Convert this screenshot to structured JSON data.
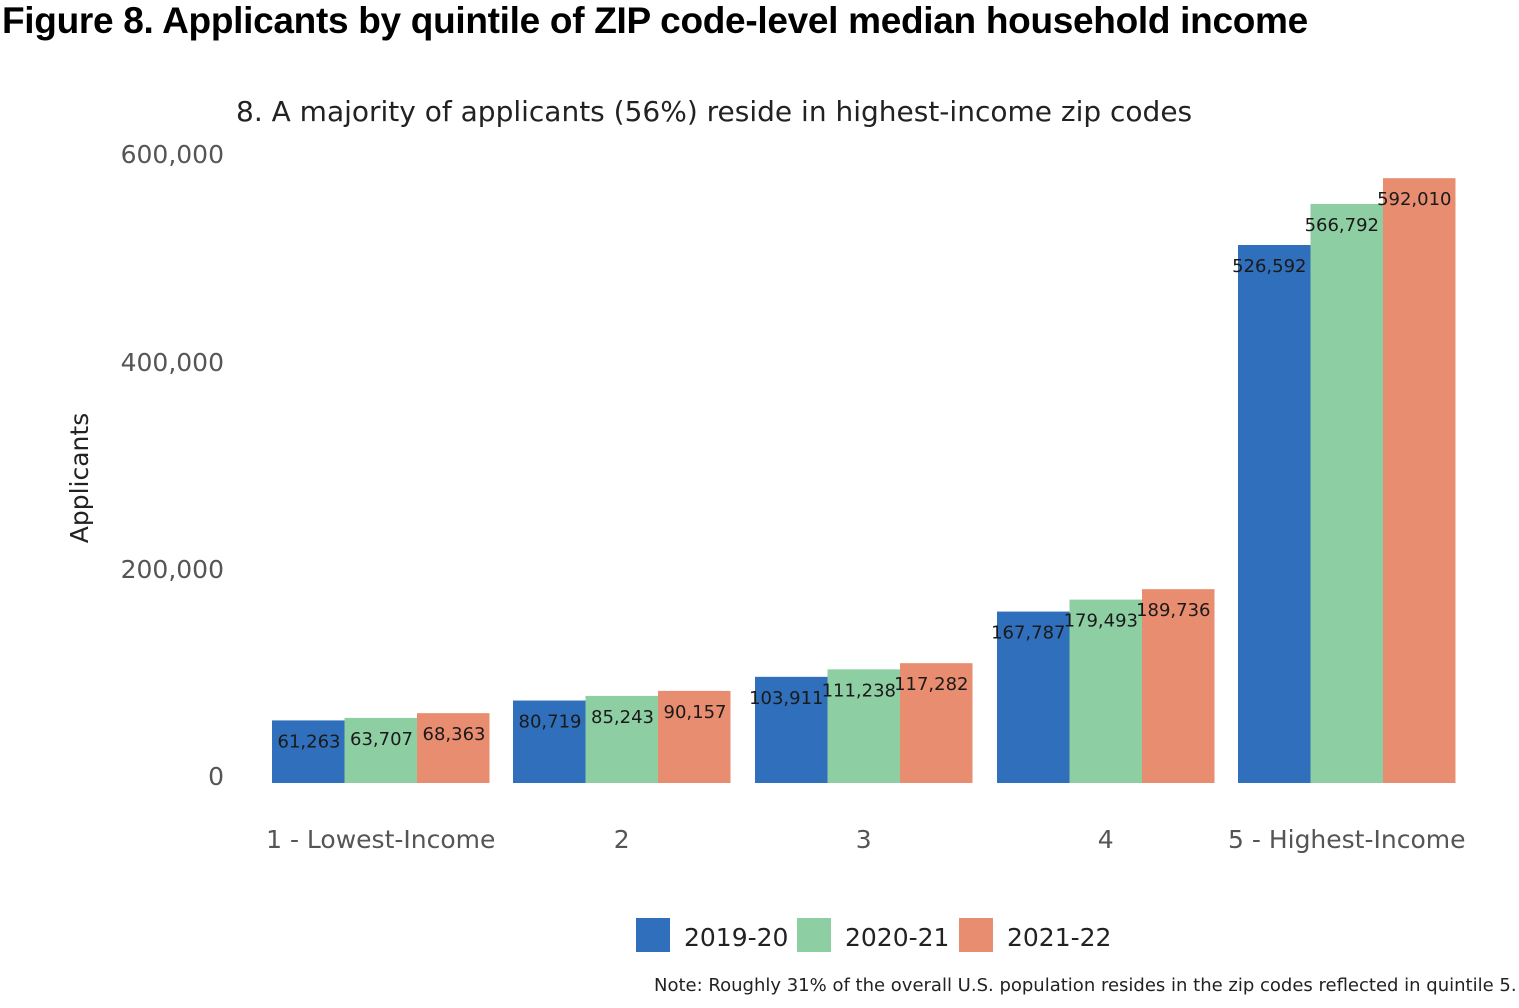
{
  "figure_title": "Figure 8. Applicants by quintile of ZIP code-level median household income",
  "note": "Note: Roughly 31% of the overall U.S. population resides in the zip codes reflected in quintile 5.",
  "chart_data": {
    "type": "bar",
    "title": "8. A majority of applicants (56%) reside in highest-income zip codes",
    "xlabel": "",
    "ylabel": "Applicants",
    "ylim": [
      0,
      600000
    ],
    "yticks": [
      0,
      200000,
      400000,
      600000
    ],
    "ytick_labels": [
      "0",
      "200,000",
      "400,000",
      "600,000"
    ],
    "grid": false,
    "legend_position": "bottom-center",
    "categories": [
      "1 - Lowest-Income",
      "2",
      "3",
      "4",
      "5 - Highest-Income"
    ],
    "series": [
      {
        "name": "2019-20",
        "color": "#2f6fbb",
        "values": [
          61263,
          80719,
          103911,
          167787,
          526592
        ],
        "labels": [
          "61,263",
          "80,719",
          "103,911",
          "167,787",
          "526,592"
        ]
      },
      {
        "name": "2020-21",
        "color": "#8dcea3",
        "values": [
          63707,
          85243,
          111238,
          179493,
          566792
        ],
        "labels": [
          "63,707",
          "85,243",
          "111,238",
          "179,493",
          "566,792"
        ]
      },
      {
        "name": "2021-22",
        "color": "#e98d71",
        "values": [
          68363,
          90157,
          117282,
          189736,
          592010
        ],
        "labels": [
          "68,363",
          "90,157",
          "117,282",
          "189,736",
          "592,010"
        ]
      }
    ]
  }
}
